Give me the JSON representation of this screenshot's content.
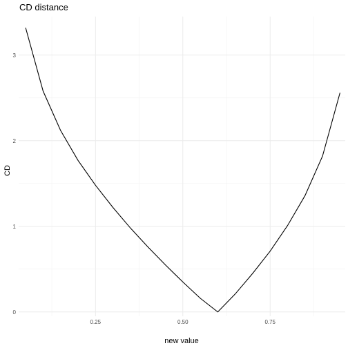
{
  "chart_data": {
    "type": "line",
    "title": "CD distance",
    "xlabel": "new value",
    "ylabel": "CD",
    "xlim": [
      0.03,
      0.965
    ],
    "ylim": [
      -0.05,
      3.45
    ],
    "x_major_ticks": [
      0.25,
      0.5,
      0.75
    ],
    "x_tick_labels": [
      "0.25",
      "0.50",
      "0.75"
    ],
    "x_minor_ticks": [
      0.125,
      0.375,
      0.625,
      0.875
    ],
    "y_major_ticks": [
      0,
      1,
      2,
      3
    ],
    "y_tick_labels": [
      "0",
      "1",
      "2",
      "3"
    ],
    "y_minor_ticks": [
      0.5,
      1.5,
      2.5
    ],
    "grid": true,
    "series": [
      {
        "color": "#000000",
        "x": [
          0.05,
          0.1,
          0.15,
          0.2,
          0.25,
          0.3,
          0.35,
          0.4,
          0.45,
          0.5,
          0.55,
          0.6,
          0.65,
          0.7,
          0.75,
          0.8,
          0.85,
          0.9,
          0.95
        ],
        "y": [
          3.32,
          2.58,
          2.12,
          1.77,
          1.48,
          1.22,
          0.98,
          0.76,
          0.55,
          0.35,
          0.16,
          0.0,
          0.21,
          0.45,
          0.71,
          1.01,
          1.36,
          1.82,
          2.56
        ]
      }
    ]
  }
}
